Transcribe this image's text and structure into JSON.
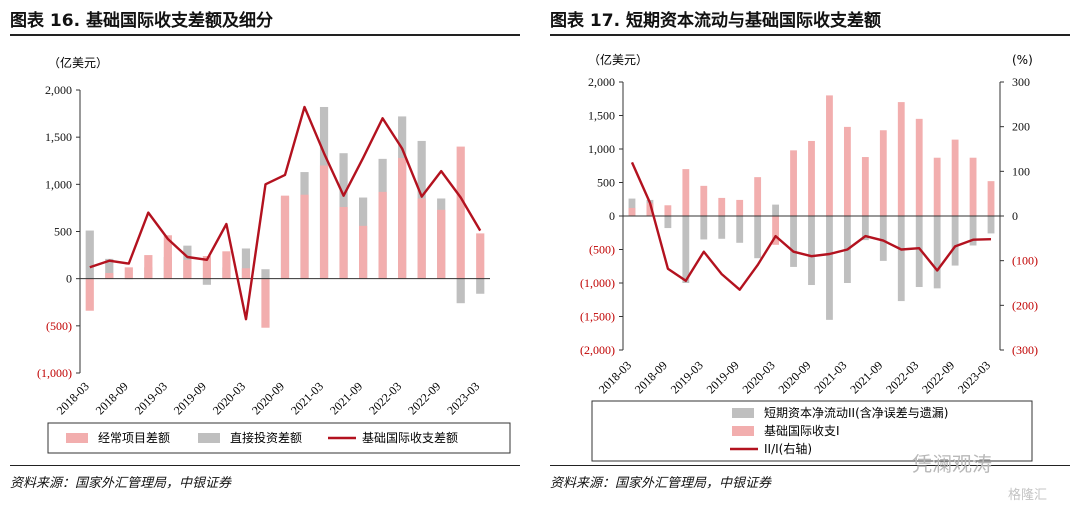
{
  "left": {
    "title": "图表 16. 基础国际收支差额及细分",
    "source": "资料来源：国家外汇管理局，中银证券",
    "chart_data": {
      "type": "bar",
      "unit_label": "（亿美元）",
      "ylim": [
        -1000,
        2000
      ],
      "yticks": [
        "(1,000)",
        "(500)",
        "0",
        "500",
        "1,000",
        "1,500",
        "2,000"
      ],
      "ytick_values": [
        -1000,
        -500,
        0,
        500,
        1000,
        1500,
        2000
      ],
      "negative_tick_color": "#c00000",
      "quarters": [
        "2018-03",
        "2018-06",
        "2018-09",
        "2018-12",
        "2019-03",
        "2019-06",
        "2019-09",
        "2019-12",
        "2020-03",
        "2020-06",
        "2020-09",
        "2020-12",
        "2021-03",
        "2021-06",
        "2021-09",
        "2021-12",
        "2022-03",
        "2022-06",
        "2022-09",
        "2022-12",
        "2023-03"
      ],
      "xtick_labels": [
        "2018-03",
        "2018-09",
        "2019-03",
        "2019-09",
        "2020-03",
        "2020-09",
        "2021-03",
        "2021-09",
        "2022-03",
        "2022-09",
        "2023-03"
      ],
      "series": [
        {
          "name": "经常项目差额",
          "kind": "bar",
          "color": "#f2aeae",
          "values": [
            -340,
            60,
            120,
            250,
            460,
            200,
            240,
            290,
            110,
            -520,
            880,
            890,
            1200,
            760,
            560,
            920,
            1280,
            850,
            730,
            1400,
            480
          ]
        },
        {
          "name": "直接投资差额",
          "kind": "bar",
          "color": "#bfbfbf",
          "values": [
            510,
            210,
            0,
            120,
            230,
            350,
            -65,
            120,
            320,
            100,
            870,
            1130,
            1820,
            1330,
            860,
            1270,
            1720,
            1460,
            850,
            -260,
            -160
          ]
        },
        {
          "name": "基础国际收支差额",
          "kind": "line",
          "color": "#b3121f",
          "values": [
            120,
            190,
            160,
            700,
            420,
            230,
            200,
            580,
            -430,
            1000,
            1100,
            1820,
            1330,
            880,
            1280,
            1700,
            1380,
            870,
            1140,
            860,
            510
          ]
        }
      ]
    }
  },
  "right": {
    "title": "图表 17. 短期资本流动与基础国际收支差额",
    "source": "资料来源：国家外汇管理局，中银证券",
    "chart_data": {
      "type": "bar",
      "unit_label_left": "（亿美元）",
      "unit_label_right": "(%)",
      "ylim_left": [
        -2000,
        2000
      ],
      "yticks_left": [
        "(2,000)",
        "(1,500)",
        "(1,000)",
        "(500)",
        "0",
        "500",
        "1,000",
        "1,500",
        "2,000"
      ],
      "ytick_values_left": [
        -2000,
        -1500,
        -1000,
        -500,
        0,
        500,
        1000,
        1500,
        2000
      ],
      "ylim_right": [
        -300,
        300
      ],
      "yticks_right": [
        "(300)",
        "(200)",
        "(100)",
        "0",
        "100",
        "200",
        "300"
      ],
      "ytick_values_right": [
        -300,
        -200,
        -100,
        0,
        100,
        200,
        300
      ],
      "negative_tick_color": "#c00000",
      "quarters": [
        "2018-03",
        "2018-06",
        "2018-09",
        "2018-12",
        "2019-03",
        "2019-06",
        "2019-09",
        "2019-12",
        "2020-03",
        "2020-06",
        "2020-09",
        "2020-12",
        "2021-03",
        "2021-06",
        "2021-09",
        "2021-12",
        "2022-03",
        "2022-06",
        "2022-09",
        "2022-12",
        "2023-03"
      ],
      "xtick_labels": [
        "2018-03",
        "2018-09",
        "2019-03",
        "2019-09",
        "2020-03",
        "2020-09",
        "2021-03",
        "2021-09",
        "2022-03",
        "2022-09",
        "2023-03"
      ],
      "series": [
        {
          "name": "短期资本净流动II(含净误差与遗漏)",
          "kind": "bar",
          "axis": "left",
          "color": "#bfbfbf",
          "values": [
            260,
            240,
            -180,
            -1000,
            -350,
            -340,
            -400,
            -630,
            170,
            -760,
            -1030,
            -1550,
            -1000,
            -360,
            -670,
            -1270,
            -1060,
            -1080,
            -740,
            -440,
            -260
          ]
        },
        {
          "name": "基础国际收支I",
          "kind": "bar",
          "axis": "left",
          "color": "#f2aeae",
          "values": [
            120,
            190,
            160,
            700,
            450,
            270,
            240,
            580,
            -430,
            980,
            1120,
            1800,
            1330,
            880,
            1280,
            1700,
            1450,
            870,
            1140,
            870,
            520
          ]
        },
        {
          "name": "II/I(右轴)",
          "kind": "line",
          "axis": "right",
          "color": "#b3121f",
          "values": [
            120,
            30,
            -118,
            -145,
            -80,
            -130,
            -165,
            -110,
            -45,
            -80,
            -90,
            -85,
            -75,
            -45,
            -55,
            -75,
            -72,
            -122,
            -68,
            -53,
            -52
          ]
        }
      ]
    }
  },
  "watermark": {
    "text": "凭澜观涛",
    "brand": "格隆汇"
  }
}
